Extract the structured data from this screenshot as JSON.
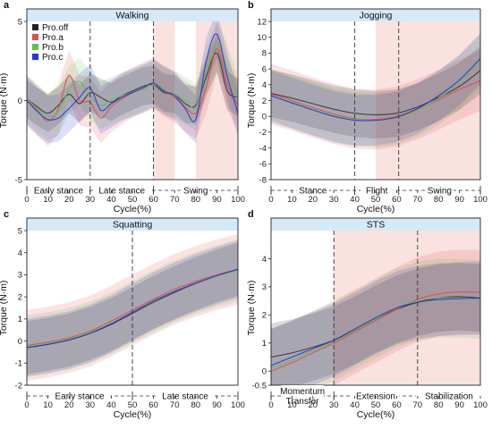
{
  "chart_data": [
    {
      "type": "line",
      "panel_label": "a",
      "title": "Walking",
      "xlabel": "Cycle(%)",
      "ylabel": "Torque (N·m)",
      "xlim": [
        0,
        100
      ],
      "ylim": [
        -5,
        5
      ],
      "xticks": [
        "0",
        "10",
        "20",
        "30",
        "40",
        "50",
        "60",
        "70",
        "80",
        "90",
        "100"
      ],
      "yticks": [
        -5,
        0,
        5
      ],
      "ytick_labels": [
        "-5",
        "0",
        "5"
      ],
      "grid": false,
      "legend": {
        "position": "top-left",
        "entries": [
          "Pro.off",
          "Pro.a",
          "Pro.b",
          "Pro.c"
        ]
      },
      "vlines": [
        30,
        60
      ],
      "shaded_x": [
        [
          60,
          70
        ],
        [
          80,
          100
        ]
      ],
      "phases": [
        {
          "label": "Early stance",
          "start": 0,
          "end": 30
        },
        {
          "label": "Late stance",
          "start": 30,
          "end": 60
        },
        {
          "label": "Swing",
          "start": 60,
          "end": 100
        }
      ],
      "series": [
        {
          "name": "Pro.off",
          "color": "#222222",
          "band_width": 1.2,
          "x": [
            0,
            5,
            10,
            15,
            20,
            25,
            30,
            35,
            40,
            45,
            50,
            55,
            60,
            65,
            70,
            75,
            80,
            85,
            90,
            95,
            100
          ],
          "y": [
            0.1,
            -0.4,
            -0.8,
            -0.3,
            0.4,
            -0.2,
            0.5,
            0.2,
            -0.1,
            0.3,
            0.6,
            0.9,
            1.0,
            0.5,
            0.4,
            -0.2,
            -0.3,
            1.5,
            3.0,
            0.6,
            0.2
          ]
        },
        {
          "name": "Pro.a",
          "color": "#e8484e",
          "band_width": 1.6,
          "x": [
            0,
            5,
            10,
            15,
            20,
            25,
            30,
            35,
            40,
            45,
            50,
            55,
            60,
            65,
            70,
            75,
            80,
            85,
            90,
            95,
            100
          ],
          "y": [
            0.0,
            -0.6,
            -1.3,
            -0.5,
            1.6,
            0.0,
            -0.1,
            -1.1,
            -0.4,
            0.1,
            0.5,
            0.8,
            1.1,
            0.6,
            0.2,
            -0.4,
            -0.8,
            0.8,
            3.3,
            1.0,
            -0.3
          ]
        },
        {
          "name": "Pro.b",
          "color": "#5bc24e",
          "band_width": 1.5,
          "x": [
            0,
            5,
            10,
            15,
            20,
            25,
            30,
            35,
            40,
            45,
            50,
            55,
            60,
            65,
            70,
            75,
            80,
            85,
            90,
            95,
            100
          ],
          "y": [
            0.1,
            -0.5,
            -1.0,
            -0.7,
            0.7,
            1.2,
            0.3,
            -0.3,
            0.0,
            0.3,
            0.5,
            0.7,
            1.0,
            0.7,
            0.4,
            0.0,
            -0.4,
            1.8,
            3.6,
            2.0,
            0.0
          ]
        },
        {
          "name": "Pro.c",
          "color": "#2c34d6",
          "band_width": 1.5,
          "x": [
            0,
            5,
            10,
            15,
            20,
            25,
            30,
            35,
            40,
            45,
            50,
            55,
            60,
            65,
            70,
            75,
            80,
            85,
            90,
            95,
            100
          ],
          "y": [
            0.0,
            -0.7,
            -1.2,
            -1.1,
            -0.5,
            0.2,
            0.8,
            -0.6,
            -0.2,
            0.2,
            0.5,
            0.8,
            1.1,
            0.6,
            0.3,
            -0.5,
            -1.2,
            2.5,
            4.2,
            1.5,
            -0.8
          ]
        }
      ]
    },
    {
      "type": "line",
      "panel_label": "b",
      "title": "Jogging",
      "xlabel": "Cycle(%)",
      "ylabel": "Torque (N·m)",
      "xlim": [
        0,
        100
      ],
      "ylim": [
        -8,
        12
      ],
      "xticks": [
        "0",
        "10",
        "20",
        "30",
        "40",
        "50",
        "60",
        "70",
        "80",
        "90",
        "100"
      ],
      "yticks": [
        -8,
        -6,
        -4,
        -2,
        0,
        2,
        4,
        6,
        8,
        10,
        12
      ],
      "ytick_labels": [
        "-8",
        "-6",
        "-4",
        "-2",
        "0",
        "2",
        "4",
        "6",
        "8",
        "10",
        "12"
      ],
      "grid": false,
      "vlines": [
        40,
        61
      ],
      "shaded_x": [
        [
          50,
          100
        ]
      ],
      "phases": [
        {
          "label": "Stance",
          "start": 0,
          "end": 40
        },
        {
          "label": "Flight",
          "start": 40,
          "end": 61
        },
        {
          "label": "Swing",
          "start": 61,
          "end": 100
        }
      ],
      "series": [
        {
          "name": "Pro.off",
          "color": "#222222",
          "band_width": 3.0,
          "x": [
            0,
            10,
            20,
            30,
            40,
            50,
            60,
            70,
            80,
            90,
            100
          ],
          "y": [
            2.9,
            2.3,
            1.6,
            0.9,
            0.4,
            0.2,
            0.4,
            1.2,
            2.4,
            3.8,
            5.8
          ]
        },
        {
          "name": "Pro.a",
          "color": "#e8484e",
          "band_width": 3.8,
          "x": [
            0,
            10,
            20,
            30,
            40,
            50,
            60,
            70,
            80,
            90,
            100
          ],
          "y": [
            2.8,
            2.0,
            1.1,
            0.3,
            -0.3,
            -0.4,
            0.0,
            0.9,
            2.1,
            3.4,
            4.5
          ]
        },
        {
          "name": "Pro.b",
          "color": "#5bc24e",
          "band_width": 3.4,
          "x": [
            0,
            10,
            20,
            30,
            40,
            50,
            60,
            70,
            80,
            90,
            100
          ],
          "y": [
            2.6,
            1.8,
            0.9,
            0.1,
            -0.4,
            -0.5,
            -0.2,
            0.8,
            2.3,
            4.3,
            7.0
          ]
        },
        {
          "name": "Pro.c",
          "color": "#2c34d6",
          "band_width": 3.2,
          "x": [
            0,
            10,
            20,
            30,
            40,
            50,
            60,
            70,
            80,
            90,
            100
          ],
          "y": [
            2.6,
            1.7,
            0.8,
            0.0,
            -0.5,
            -0.5,
            -0.1,
            1.0,
            2.6,
            4.6,
            7.3
          ]
        }
      ]
    },
    {
      "type": "line",
      "panel_label": "c",
      "title": "Squatting",
      "xlabel": "Cycle(%)",
      "ylabel": "Torque (N·m)",
      "xlim": [
        0,
        100
      ],
      "ylim": [
        -2,
        5
      ],
      "xticks": [
        "0",
        "10",
        "20",
        "30",
        "40",
        "50",
        "60",
        "70",
        "80",
        "90",
        "100"
      ],
      "yticks": [
        -2,
        -1,
        0,
        1,
        2,
        3,
        4,
        5
      ],
      "ytick_labels": [
        "-2",
        "-1",
        "0",
        "1",
        "2",
        "3",
        "4",
        "5"
      ],
      "grid": false,
      "vlines": [
        50
      ],
      "shaded_x": [],
      "phases": [
        {
          "label": "Early stance",
          "start": 0,
          "end": 50
        },
        {
          "label": "Late stance",
          "start": 50,
          "end": 100
        }
      ],
      "series": [
        {
          "name": "Pro.off",
          "color": "#222222",
          "band_width": 1.2,
          "x": [
            0,
            10,
            20,
            30,
            40,
            50,
            60,
            70,
            80,
            90,
            100
          ],
          "y": [
            -0.3,
            -0.15,
            0.05,
            0.35,
            0.75,
            1.25,
            1.75,
            2.2,
            2.6,
            2.95,
            3.25
          ]
        },
        {
          "name": "Pro.a",
          "color": "#e8484e",
          "band_width": 1.6,
          "x": [
            0,
            10,
            20,
            30,
            40,
            50,
            60,
            70,
            80,
            90,
            100
          ],
          "y": [
            -0.2,
            -0.05,
            0.15,
            0.45,
            0.9,
            1.4,
            1.9,
            2.35,
            2.7,
            3.0,
            3.25
          ]
        },
        {
          "name": "Pro.b",
          "color": "#5bc24e",
          "band_width": 1.4,
          "x": [
            0,
            10,
            20,
            30,
            40,
            50,
            60,
            70,
            80,
            90,
            100
          ],
          "y": [
            -0.25,
            -0.1,
            0.1,
            0.4,
            0.8,
            1.3,
            1.8,
            2.25,
            2.62,
            2.95,
            3.2
          ]
        },
        {
          "name": "Pro.c",
          "color": "#2c34d6",
          "band_width": 1.3,
          "x": [
            0,
            10,
            20,
            30,
            40,
            50,
            60,
            70,
            80,
            90,
            100
          ],
          "y": [
            -0.3,
            -0.15,
            0.05,
            0.35,
            0.78,
            1.3,
            1.82,
            2.25,
            2.63,
            2.96,
            3.25
          ]
        }
      ]
    },
    {
      "type": "line",
      "panel_label": "d",
      "title": "STS",
      "xlabel": "Cycle(%)",
      "ylabel": "Torque (N·m)",
      "xlim": [
        0,
        100
      ],
      "ylim": [
        -0.5,
        5
      ],
      "xticks": [
        "0",
        "10",
        "20",
        "30",
        "40",
        "50",
        "60",
        "70",
        "80",
        "90",
        "100"
      ],
      "yticks": [
        -0.5,
        0,
        1,
        2,
        3,
        4
      ],
      "ytick_labels": [
        "-0.5",
        "0",
        "1",
        "2",
        "3",
        "4"
      ],
      "grid": false,
      "vlines": [
        30,
        70
      ],
      "shaded_x": [
        [
          30,
          100
        ]
      ],
      "phases": [
        {
          "label": "Momentum\nTransfer",
          "start": 0,
          "end": 30
        },
        {
          "label": "Extension",
          "start": 30,
          "end": 70
        },
        {
          "label": "Stabilization",
          "start": 70,
          "end": 100
        }
      ],
      "series": [
        {
          "name": "Pro.off",
          "color": "#222222",
          "band_width": 1.2,
          "x": [
            0,
            10,
            20,
            30,
            40,
            50,
            60,
            70,
            80,
            90,
            100
          ],
          "y": [
            0.5,
            0.65,
            0.85,
            1.1,
            1.45,
            1.85,
            2.2,
            2.45,
            2.6,
            2.65,
            2.6
          ]
        },
        {
          "name": "Pro.a",
          "color": "#e8484e",
          "band_width": 1.5,
          "x": [
            0,
            10,
            20,
            30,
            40,
            50,
            60,
            70,
            80,
            90,
            100
          ],
          "y": [
            0.0,
            0.3,
            0.65,
            1.0,
            1.4,
            1.8,
            2.2,
            2.55,
            2.75,
            2.82,
            2.8
          ]
        },
        {
          "name": "Pro.b",
          "color": "#5bc24e",
          "band_width": 1.4,
          "x": [
            0,
            10,
            20,
            30,
            40,
            50,
            60,
            70,
            80,
            90,
            100
          ],
          "y": [
            0.1,
            0.4,
            0.72,
            1.05,
            1.45,
            1.85,
            2.25,
            2.5,
            2.6,
            2.6,
            2.55
          ]
        },
        {
          "name": "Pro.c",
          "color": "#2c34d6",
          "band_width": 1.3,
          "x": [
            0,
            10,
            20,
            30,
            40,
            50,
            60,
            70,
            80,
            90,
            100
          ],
          "y": [
            0.2,
            0.5,
            0.8,
            1.1,
            1.5,
            1.9,
            2.25,
            2.45,
            2.55,
            2.58,
            2.6
          ]
        }
      ]
    }
  ]
}
